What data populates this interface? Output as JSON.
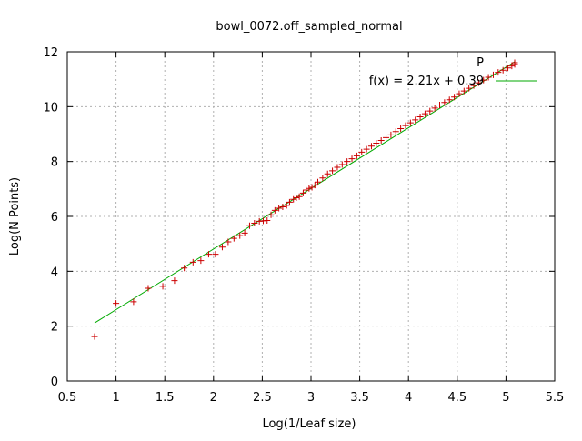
{
  "chart_data": {
    "type": "scatter",
    "title": "bowl_0072.off_sampled_normal",
    "xlabel": "Log(1/Leaf size)",
    "ylabel": "Log(N Points)",
    "xlim": [
      0.5,
      5.5
    ],
    "ylim": [
      0,
      12
    ],
    "xticks": [
      "0.5",
      "1",
      "1.5",
      "2",
      "2.5",
      "3",
      "3.5",
      "4",
      "4.5",
      "5",
      "5.5"
    ],
    "yticks": [
      "0",
      "2",
      "4",
      "6",
      "8",
      "10",
      "12"
    ],
    "grid": true,
    "legend_placement": "top-right",
    "series": [
      {
        "name": "P",
        "marker": "+",
        "color": "#cc0000",
        "x": [
          0.78,
          1.0,
          1.18,
          1.33,
          1.48,
          1.6,
          1.7,
          1.79,
          1.87,
          1.95,
          2.02,
          2.09,
          2.15,
          2.21,
          2.27,
          2.32,
          2.37,
          2.42,
          2.47,
          2.51,
          2.55,
          2.59,
          2.63,
          2.67,
          2.71,
          2.75,
          2.78,
          2.82,
          2.85,
          2.88,
          2.92,
          2.95,
          2.98,
          3.01,
          3.04,
          3.07,
          3.12,
          3.17,
          3.22,
          3.27,
          3.32,
          3.37,
          3.42,
          3.47,
          3.52,
          3.57,
          3.62,
          3.67,
          3.72,
          3.77,
          3.82,
          3.87,
          3.92,
          3.97,
          4.02,
          4.07,
          4.12,
          4.17,
          4.22,
          4.27,
          4.32,
          4.37,
          4.42,
          4.47,
          4.52,
          4.57,
          4.62,
          4.67,
          4.72,
          4.77,
          4.82,
          4.87,
          4.92,
          4.97,
          5.02,
          5.06,
          5.09
        ],
        "y": [
          1.62,
          2.83,
          2.89,
          3.38,
          3.45,
          3.66,
          4.12,
          4.33,
          4.39,
          4.62,
          4.62,
          4.88,
          5.07,
          5.2,
          5.3,
          5.39,
          5.66,
          5.75,
          5.82,
          5.84,
          5.85,
          6.06,
          6.22,
          6.3,
          6.35,
          6.4,
          6.52,
          6.62,
          6.68,
          6.72,
          6.85,
          6.96,
          7.02,
          7.06,
          7.14,
          7.25,
          7.4,
          7.55,
          7.66,
          7.79,
          7.89,
          8.0,
          8.1,
          8.21,
          8.34,
          8.45,
          8.56,
          8.67,
          8.77,
          8.87,
          8.97,
          9.09,
          9.2,
          9.31,
          9.41,
          9.52,
          9.63,
          9.74,
          9.84,
          9.95,
          10.06,
          10.15,
          10.25,
          10.35,
          10.47,
          10.57,
          10.67,
          10.77,
          10.87,
          10.97,
          11.07,
          11.16,
          11.25,
          11.33,
          11.41,
          11.48,
          11.54
        ]
      },
      {
        "name": "f(x) = 2.21x + 0.39",
        "type": "line",
        "color": "#00aa00",
        "slope": 2.21,
        "intercept": 0.39,
        "x_range": [
          0.78,
          5.09
        ]
      }
    ]
  }
}
